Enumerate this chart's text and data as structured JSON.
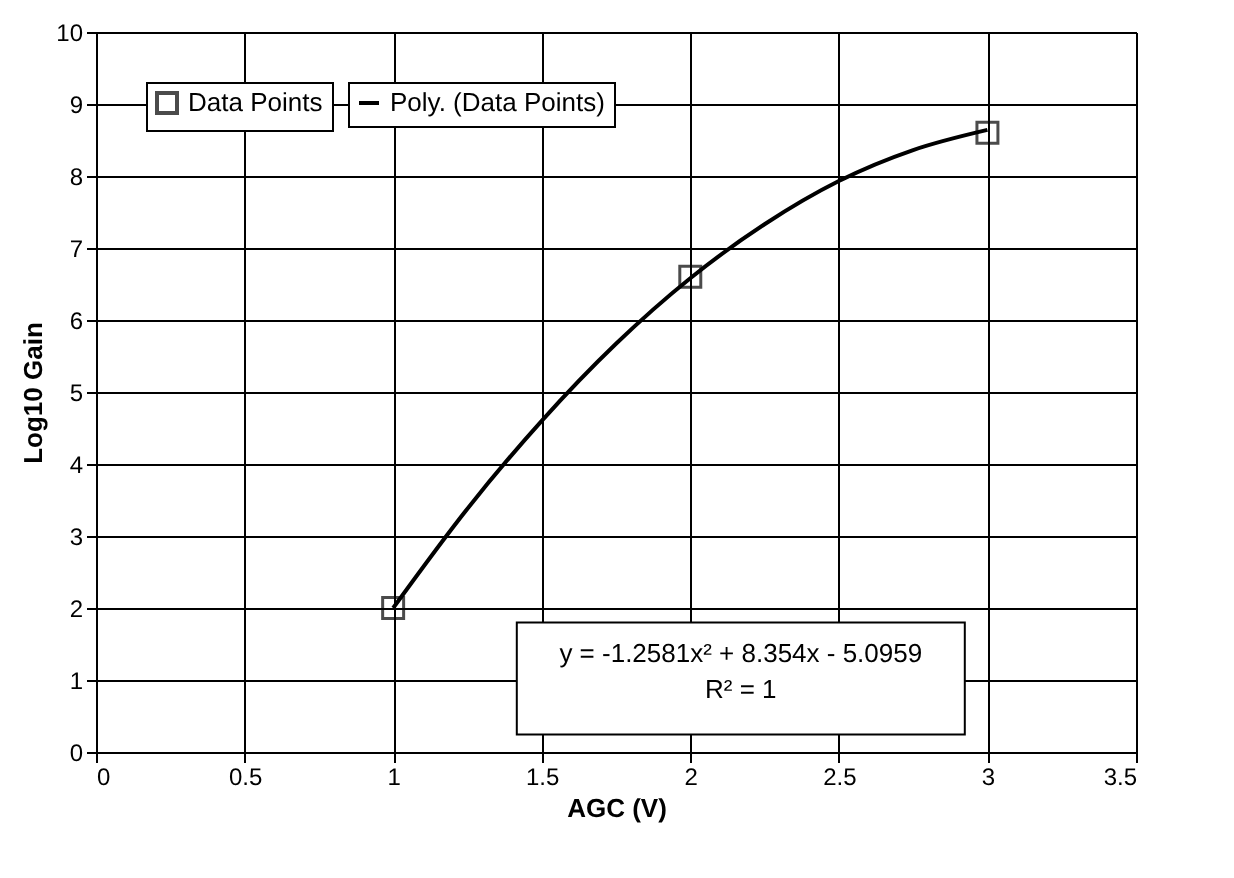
{
  "chart_data": {
    "type": "scatter",
    "xlabel": "AGC (V)",
    "ylabel": "Log10 Gain",
    "xlim": [
      0,
      3.5
    ],
    "xticks": [
      0,
      0.5,
      1,
      1.5,
      2,
      2.5,
      3,
      3.5
    ],
    "ylim": [
      0,
      10
    ],
    "yticks": [
      0,
      1,
      2,
      3,
      4,
      5,
      6,
      7,
      8,
      9,
      10
    ],
    "grid": true,
    "legend": "top left",
    "marker": "square",
    "series": [
      {
        "name": "Data Points",
        "color": "#000000",
        "x": [
          1,
          2,
          3
        ],
        "values": [
          2.0,
          6.6,
          8.6
        ]
      },
      {
        "name": "Poly. (Data Points)",
        "type": "line",
        "color": "#000000",
        "line_style": "solid",
        "marker": "none",
        "x": [
          1,
          1.25,
          1.5,
          1.75,
          2,
          2.25,
          2.5,
          2.75,
          3
        ],
        "values": [
          2.0,
          3.38,
          4.6,
          5.67,
          6.58,
          7.33,
          7.93,
          8.36,
          8.64
        ]
      }
    ],
    "annotations": [
      "y = -1.2581x² + 8.354x - 5.0959",
      "R² = 1"
    ]
  }
}
